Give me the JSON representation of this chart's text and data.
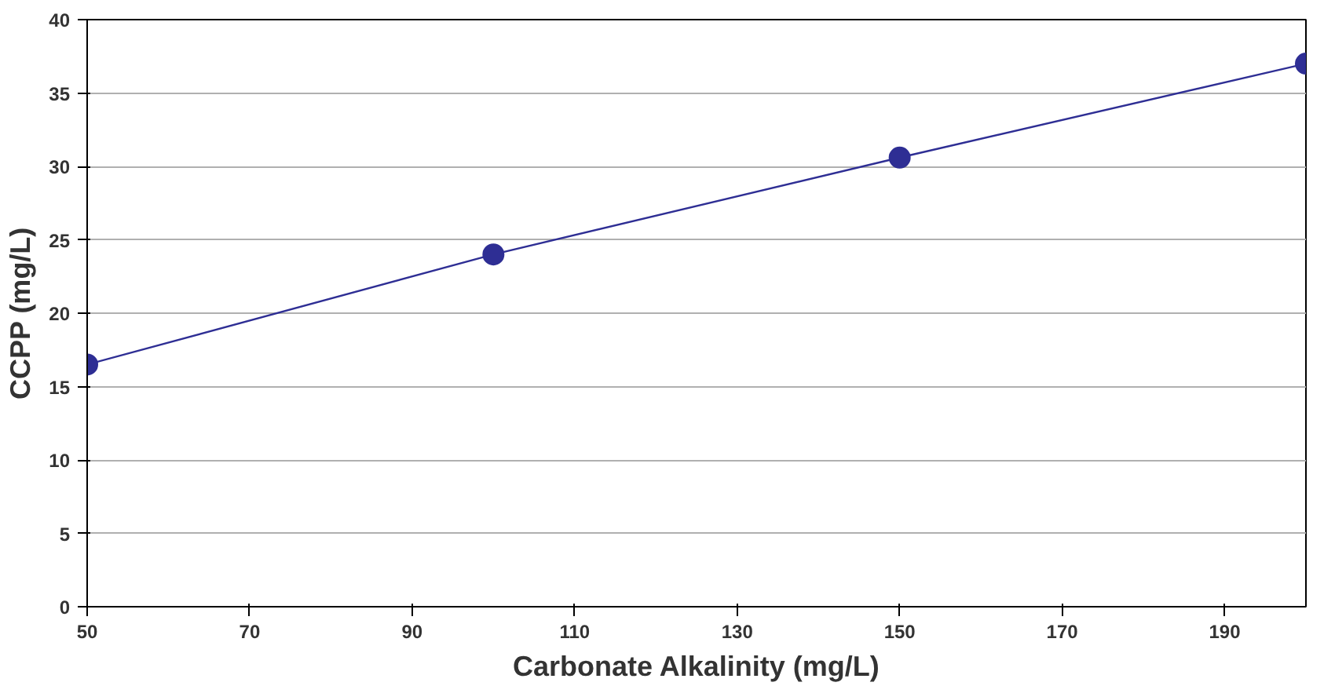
{
  "chart_data": {
    "type": "line",
    "xlabel": "Carbonate Alkalinity (mg/L)",
    "ylabel": "CCPP (mg/L)",
    "x": [
      50,
      100,
      150,
      200
    ],
    "series": [
      {
        "color": "#2e2e94",
        "values": [
          16.5,
          24,
          30.6,
          37
        ]
      }
    ],
    "xlim": [
      50,
      200
    ],
    "xticks": [
      50,
      70,
      90,
      110,
      130,
      150,
      170,
      190
    ],
    "ylim": [
      0,
      40
    ],
    "yticks": [
      0,
      5,
      10,
      15,
      20,
      25,
      30,
      35,
      40
    ],
    "grid": "y",
    "marker": "circle",
    "line_style": "solid"
  }
}
